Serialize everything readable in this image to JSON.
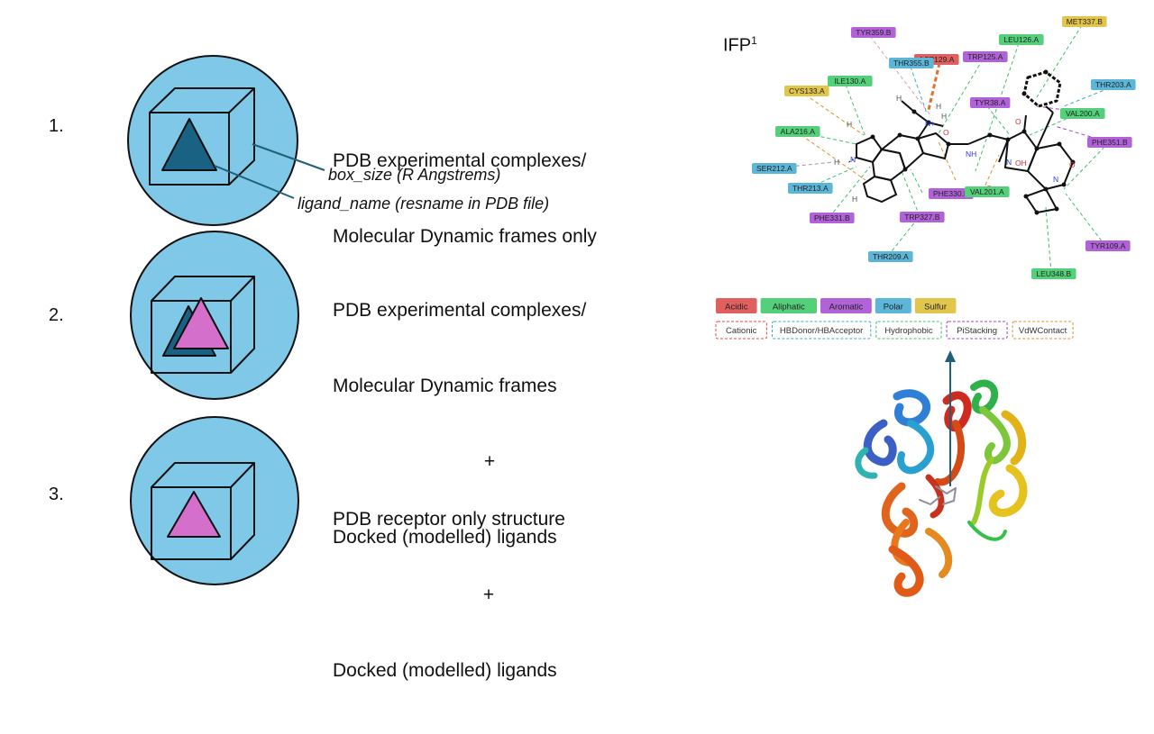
{
  "scenarios": [
    {
      "number": "1.",
      "lines": [
        "PDB experimental complexes/",
        "Molecular Dynamic frames only"
      ],
      "annotations": [
        "box_size (R Angstrems)",
        "ligand_name (resname in PDB file)"
      ]
    },
    {
      "number": "2.",
      "lines": [
        "PDB experimental complexes/",
        "Molecular Dynamic frames",
        "+",
        "Docked (modelled) ligands"
      ]
    },
    {
      "number": "3.",
      "lines": [
        "PDB receptor only structure",
        "+",
        "Docked (modelled) ligands"
      ]
    }
  ],
  "ifp": {
    "label": "IFP",
    "superscript": "1"
  },
  "residues": [
    {
      "name": "TYR359.B",
      "type": "Aromatic"
    },
    {
      "name": "ASP129.A",
      "type": "Acidic"
    },
    {
      "name": "THR355.B",
      "type": "Polar"
    },
    {
      "name": "TRP125.A",
      "type": "Aromatic"
    },
    {
      "name": "LEU126.A",
      "type": "Aliphatic"
    },
    {
      "name": "MET337.B",
      "type": "Sulfur"
    },
    {
      "name": "CYS133.A",
      "type": "Sulfur"
    },
    {
      "name": "ILE130.A",
      "type": "Aliphatic"
    },
    {
      "name": "TYR38.A",
      "type": "Aromatic"
    },
    {
      "name": "THR203.A",
      "type": "Polar"
    },
    {
      "name": "VAL200.A",
      "type": "Aliphatic"
    },
    {
      "name": "ALA216.A",
      "type": "Aliphatic"
    },
    {
      "name": "PHE351.B",
      "type": "Aromatic"
    },
    {
      "name": "SER212.A",
      "type": "Polar"
    },
    {
      "name": "THR213.A",
      "type": "Polar"
    },
    {
      "name": "PHE330.B",
      "type": "Aromatic"
    },
    {
      "name": "VAL201.A",
      "type": "Aliphatic"
    },
    {
      "name": "PHE331.B",
      "type": "Aromatic"
    },
    {
      "name": "TRP327.B",
      "type": "Aromatic"
    },
    {
      "name": "TYR109.A",
      "type": "Aromatic"
    },
    {
      "name": "THR209.A",
      "type": "Polar"
    },
    {
      "name": "LEU348.B",
      "type": "Aliphatic"
    }
  ],
  "atom_labels": [
    "H",
    "N+",
    "H",
    "H",
    "O",
    "NH",
    "O",
    "O",
    "N",
    "OH",
    "O",
    "N",
    "H",
    "N",
    "H",
    "H"
  ],
  "residue_legend": [
    {
      "label": "Acidic",
      "color": "#e06060"
    },
    {
      "label": "Aliphatic",
      "color": "#55d07a"
    },
    {
      "label": "Aromatic",
      "color": "#b262d8"
    },
    {
      "label": "Polar",
      "color": "#5bb6d8"
    },
    {
      "label": "Sulfur",
      "color": "#e2c64c"
    }
  ],
  "interaction_legend": [
    {
      "label": "Cationic",
      "color": "#e04848"
    },
    {
      "label": "HBDonor/HBAcceptor",
      "color": "#3aa8c8"
    },
    {
      "label": "Hydrophobic",
      "color": "#3cc070"
    },
    {
      "label": "PiStacking",
      "color": "#a040c8"
    },
    {
      "label": "VdWContact",
      "color": "#e0902c"
    }
  ],
  "colors": {
    "circle_fill": "#7fc8e8",
    "triangle_dark": "#1a6283",
    "triangle_pink": "#d56fcc",
    "arrow": "#1f5f78"
  }
}
